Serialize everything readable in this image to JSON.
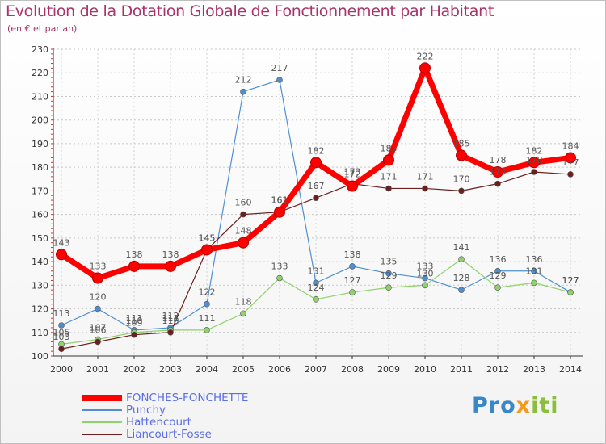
{
  "chart_data": {
    "type": "line",
    "title": "Evolution de la Dotation Globale de Fonctionnement par Habitant",
    "subtitle": "(en € et par an)",
    "xlabel": "",
    "ylabel": "",
    "ylim": [
      100,
      230
    ],
    "yticks": [
      100,
      110,
      120,
      130,
      140,
      150,
      160,
      170,
      180,
      190,
      200,
      210,
      220,
      230
    ],
    "categories": [
      "2000",
      "2001",
      "2002",
      "2003",
      "2004",
      "2005",
      "2006",
      "2007",
      "2008",
      "2009",
      "2010",
      "2011",
      "2012",
      "2013",
      "2014"
    ],
    "series": [
      {
        "name": "FONCHES-FONCHETTE",
        "color": "#ff0000",
        "values": [
          143,
          133,
          138,
          138,
          145,
          148,
          161,
          182,
          172,
          183,
          222,
          185,
          178,
          182,
          184
        ]
      },
      {
        "name": "Punchy",
        "color": "#4f8fcf",
        "values": [
          113,
          120,
          111,
          112,
          122,
          212,
          217,
          131,
          138,
          135,
          133,
          128,
          136,
          136,
          127
        ]
      },
      {
        "name": "Hattencourt",
        "color": "#8fd16a",
        "values": [
          105,
          107,
          110,
          111,
          111,
          118,
          133,
          124,
          127,
          129,
          130,
          141,
          129,
          131,
          127
        ]
      },
      {
        "name": "Liancourt-Fosse",
        "color": "#6b1f1f",
        "values": [
          103,
          106,
          109,
          110,
          145,
          160,
          161,
          167,
          173,
          171,
          171,
          170,
          173,
          178,
          177
        ]
      }
    ]
  },
  "logo": {
    "p1": "Pro",
    "p2": "x",
    "p3": "iti"
  }
}
